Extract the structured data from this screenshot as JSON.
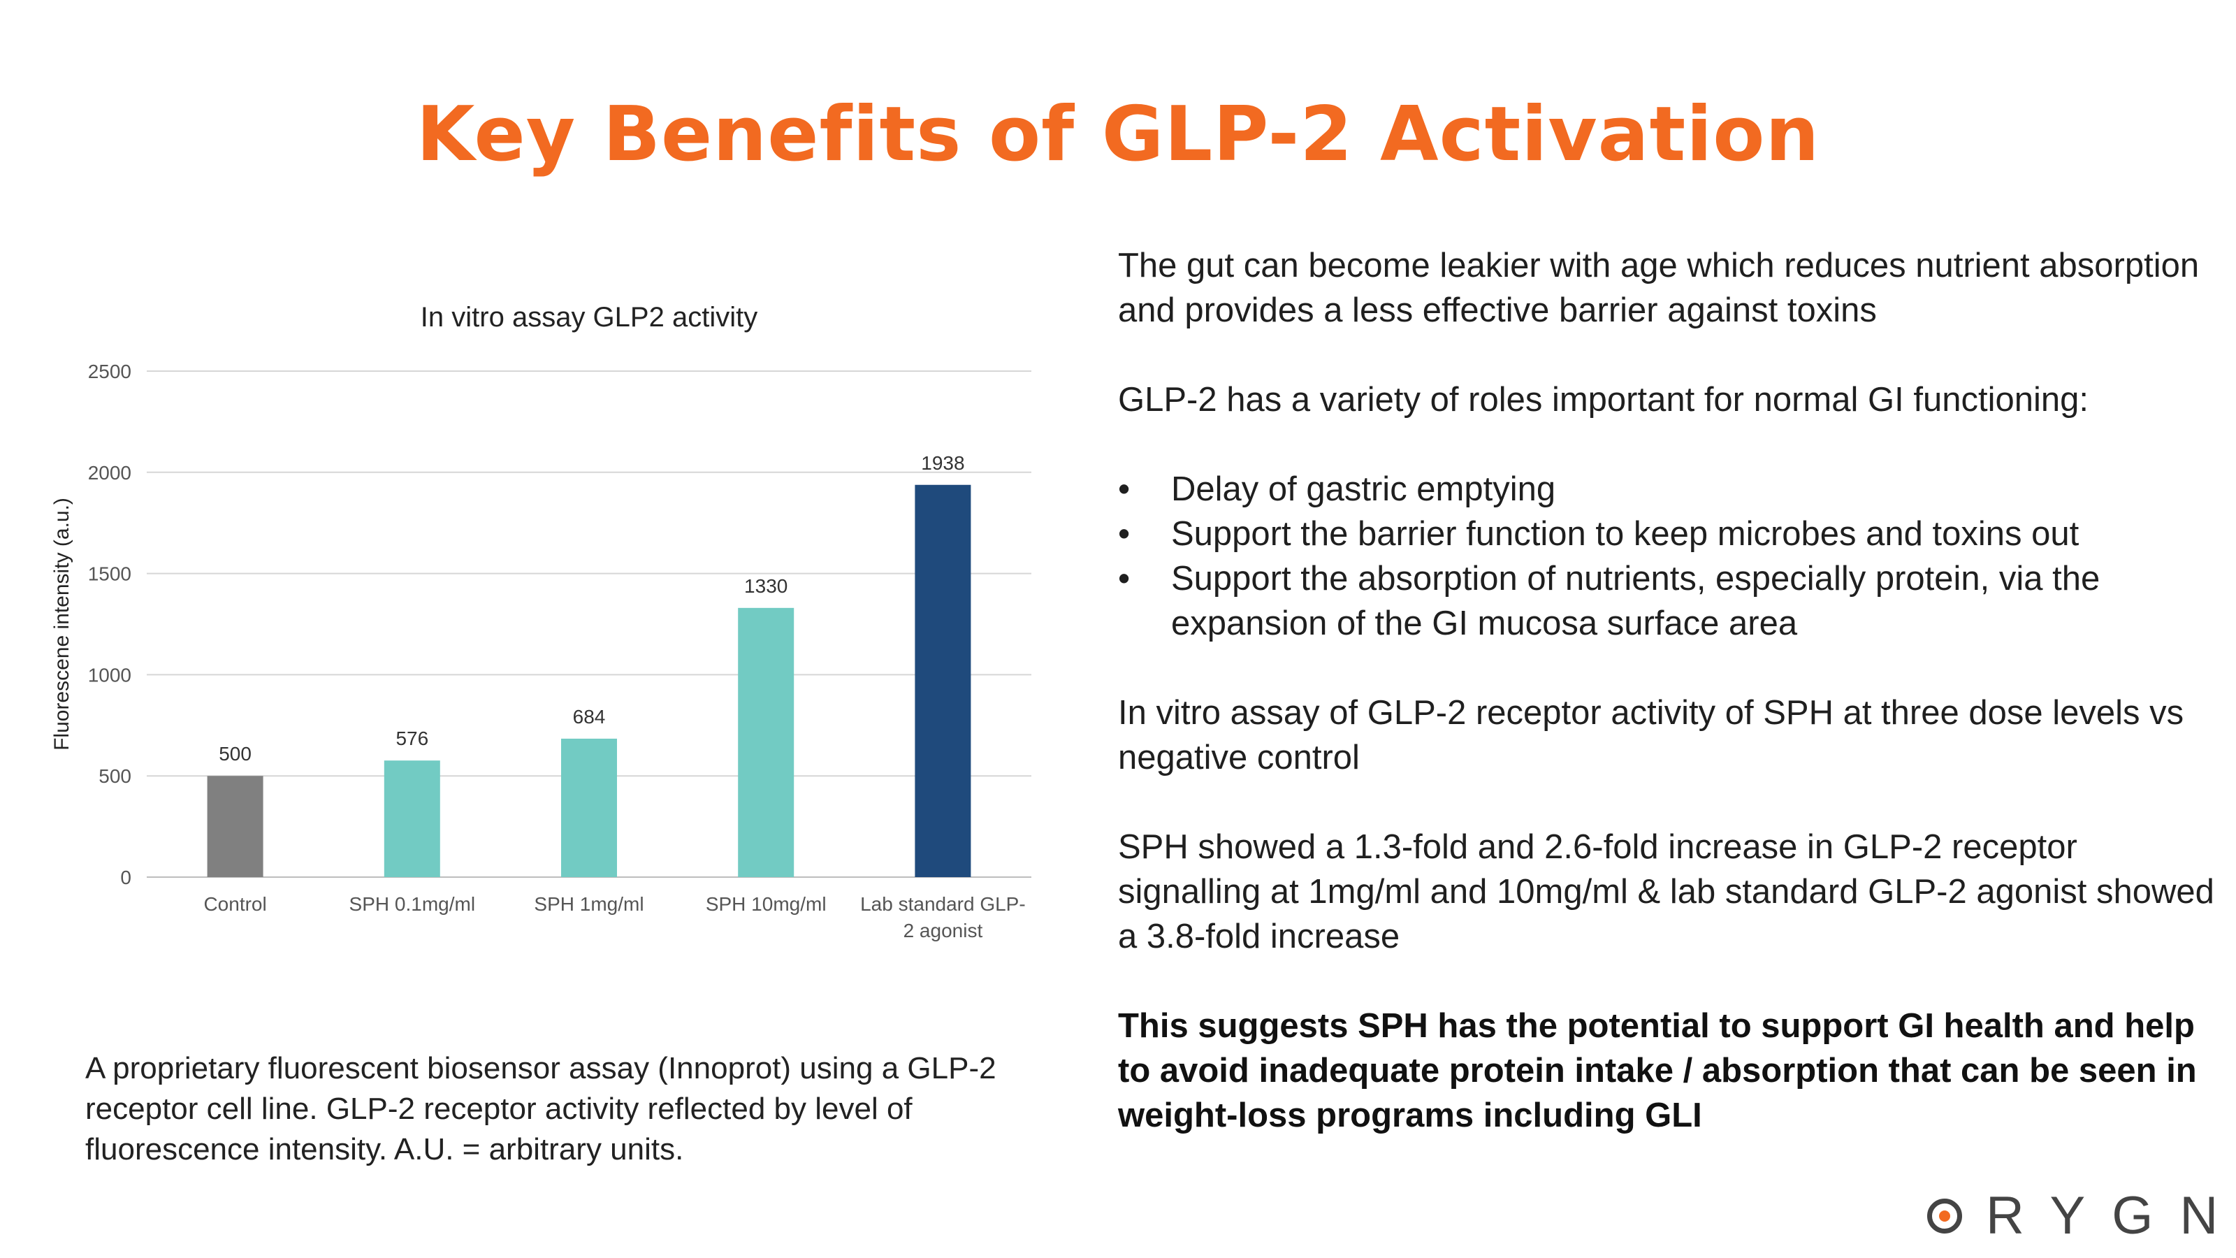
{
  "slide": {
    "title": "Key Benefits of GLP-2 Activation"
  },
  "chart_data": {
    "type": "bar",
    "title": "In vitro assay GLP2 activity",
    "xlabel": "",
    "ylabel": "Fluorescene intensity (a.u.)",
    "ylim": [
      0,
      2500
    ],
    "yticks": [
      0,
      500,
      1000,
      1500,
      2000,
      2500
    ],
    "grid": true,
    "categories": [
      "Control",
      "SPH 0.1mg/ml",
      "SPH 1mg/ml",
      "SPH 10mg/ml",
      "Lab standard GLP-2 agonist"
    ],
    "category_label_lines": [
      [
        "Control"
      ],
      [
        "SPH 0.1mg/ml"
      ],
      [
        "SPH 1mg/ml"
      ],
      [
        "SPH 10mg/ml"
      ],
      [
        "Lab standard GLP-",
        "2 agonist"
      ]
    ],
    "values": [
      500,
      576,
      684,
      1330,
      1938
    ],
    "value_labels": [
      "500",
      "576",
      "684",
      "1330",
      "1938"
    ],
    "colors": [
      "#808080",
      "#72cbc3",
      "#72cbc3",
      "#72cbc3",
      "#1f4a7c"
    ]
  },
  "caption": "A proprietary fluorescent biosensor assay (Innoprot) using a GLP-2 receptor cell line. GLP-2 receptor activity reflected by level of fluorescence intensity. A.U. = arbitrary units.",
  "right": {
    "para1": "The gut can become leakier with age which reduces nutrient absorption and provides a less effective barrier against toxins",
    "para2": "GLP-2 has a variety of roles important for normal GI functioning:",
    "bullets": [
      "Delay of gastric emptying",
      "Support the barrier function to keep microbes and toxins out",
      "Support the absorption of nutrients, especially protein, via the expansion of the GI mucosa surface area"
    ],
    "para3": "In vitro assay of GLP-2 receptor activity of SPH at three dose levels vs negative control",
    "para4": "SPH showed a 1.3-fold and 2.6-fold increase in GLP-2 receptor signalling at 1mg/ml and 10mg/ml & lab standard GLP-2 agonist showed a 3.8-fold increase",
    "para5": "This suggests SPH has the potential to support GI health and help to avoid inadequate protein intake / absorption that can be seen in weight-loss programs including GLI"
  },
  "logo": {
    "text": "RYGN",
    "accent_color": "#f26a21"
  }
}
